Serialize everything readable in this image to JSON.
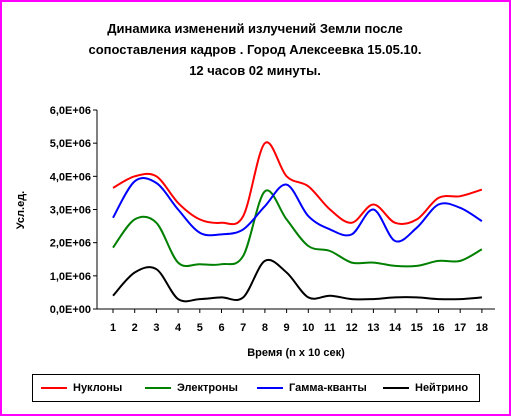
{
  "chart_data": {
    "type": "line",
    "title": "Динамика изменений излучений Земли после\nсопоставления кадров . Город Алексеевка 15.05.10.\n12 часов 02 минуты.",
    "xlabel": "Время (n x 10 сек)",
    "ylabel": "Усл.ед.",
    "categories": [
      "1",
      "2",
      "3",
      "4",
      "5",
      "6",
      "7",
      "8",
      "9",
      "10",
      "11",
      "12",
      "13",
      "14",
      "15",
      "16",
      "17",
      "18"
    ],
    "yticks": [
      "0,0E+00",
      "1,0E+06",
      "2,0E+06",
      "3,0E+06",
      "4,0E+06",
      "5,0E+06",
      "6,0E+06"
    ],
    "ylim": [
      0,
      6000000
    ],
    "grid": false,
    "legend_position": "bottom",
    "series": [
      {
        "name": "Нуклоны",
        "color": "#ff0000",
        "values": [
          3650000,
          4000000,
          4000000,
          3200000,
          2700000,
          2600000,
          2800000,
          5000000,
          4000000,
          3700000,
          3000000,
          2600000,
          3150000,
          2600000,
          2700000,
          3350000,
          3400000,
          3600000
        ]
      },
      {
        "name": "Электроны",
        "color": "#008000",
        "values": [
          1850000,
          2700000,
          2600000,
          1400000,
          1350000,
          1350000,
          1600000,
          3550000,
          2700000,
          1900000,
          1750000,
          1400000,
          1400000,
          1300000,
          1300000,
          1450000,
          1450000,
          1800000
        ]
      },
      {
        "name": "Гамма-кванты",
        "color": "#0000ff",
        "values": [
          2750000,
          3850000,
          3800000,
          3000000,
          2300000,
          2250000,
          2400000,
          3100000,
          3750000,
          2800000,
          2400000,
          2250000,
          3000000,
          2050000,
          2450000,
          3150000,
          3050000,
          2650000
        ]
      },
      {
        "name": "Нейтрино",
        "color": "#000000",
        "values": [
          400000,
          1100000,
          1200000,
          300000,
          300000,
          350000,
          350000,
          1450000,
          1100000,
          350000,
          400000,
          300000,
          300000,
          350000,
          350000,
          300000,
          300000,
          350000
        ]
      }
    ]
  }
}
